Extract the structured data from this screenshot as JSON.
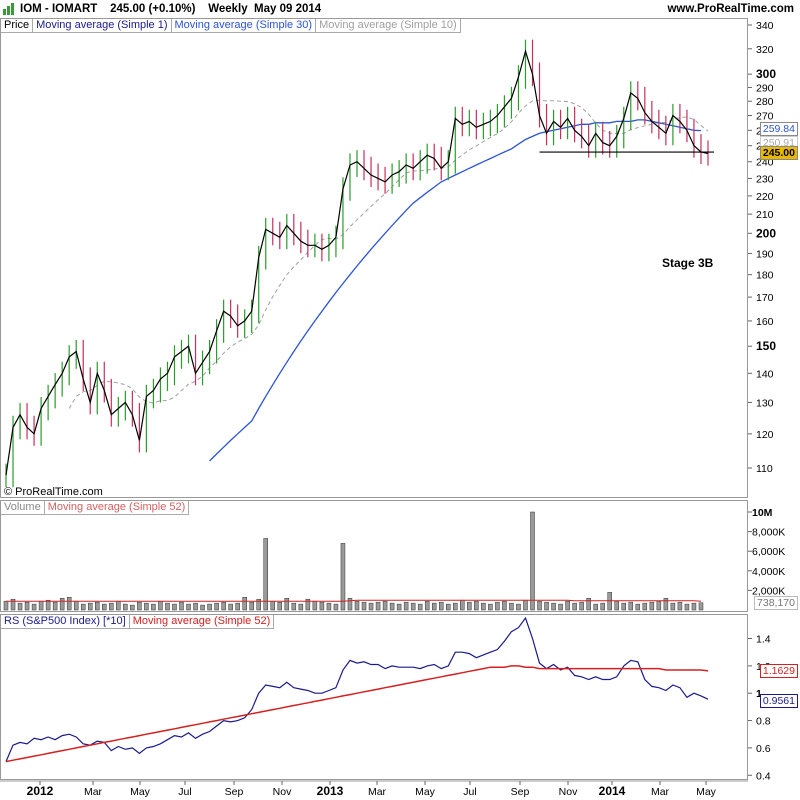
{
  "header": {
    "title": "IOM - IOMART    245.00 (+0.10%)    Weekly  May 09 2014",
    "site": "www.ProRealTime.com"
  },
  "price_panel": {
    "legend": [
      "Price",
      "Moving average (Simple 1)",
      "Moving average (Simple 30)",
      "Moving average (Simple 10)"
    ],
    "copyright": "© ProRealTime.com",
    "annotation": "Stage 3B",
    "tags": {
      "ma30": "259.84",
      "ma10": "250.91",
      "price": "245.00"
    },
    "yticks": [
      "340",
      "320",
      "300",
      "290",
      "280",
      "270",
      "260",
      "250",
      "240",
      "230",
      "220",
      "210",
      "200",
      "190",
      "180",
      "170",
      "160",
      "150",
      "140",
      "130",
      "120",
      "110"
    ]
  },
  "volume_panel": {
    "legend": [
      "Volume",
      "Moving average (Simple 52)"
    ],
    "yticks": [
      "10M",
      "8,000K",
      "6,000K",
      "4,000K",
      "2,000K"
    ],
    "tag": "738,170"
  },
  "rs_panel": {
    "legend": [
      "RS (S&P500 Index) [*10]",
      "Moving average (Simple 52)"
    ],
    "yticks": [
      "1.4",
      "1.2",
      "1",
      "0.8",
      "0.6",
      "0.4"
    ],
    "tags": {
      "ma": "1.1629",
      "rs": "0.9561"
    }
  },
  "xaxis": {
    "labels": [
      "2012",
      "Mar",
      "May",
      "Jul",
      "Sep",
      "Nov",
      "2013",
      "Mar",
      "May",
      "Jul",
      "Sep",
      "Nov",
      "2014",
      "Mar",
      "May"
    ]
  },
  "chart_data": {
    "type": "line",
    "title": "IOM - IOMART",
    "price_close": [
      108,
      122,
      126,
      122,
      120,
      128,
      132,
      136,
      140,
      146,
      148,
      138,
      130,
      140,
      134,
      126,
      128,
      130,
      126,
      118,
      132,
      134,
      138,
      140,
      146,
      148,
      150,
      140,
      144,
      148,
      156,
      164,
      162,
      158,
      160,
      164,
      188,
      202,
      200,
      198,
      204,
      200,
      196,
      194,
      194,
      192,
      194,
      198,
      224,
      238,
      240,
      236,
      232,
      230,
      228,
      232,
      234,
      238,
      236,
      240,
      244,
      242,
      236,
      240,
      268,
      264,
      266,
      262,
      264,
      266,
      270,
      276,
      282,
      298,
      318,
      300,
      270,
      258,
      266,
      262,
      268,
      260,
      256,
      250,
      258,
      252,
      250,
      256,
      268,
      286,
      282,
      272,
      266,
      262,
      258,
      270,
      266,
      260,
      250,
      246,
      245
    ],
    "ma30": [
      null,
      null,
      null,
      null,
      null,
      null,
      null,
      null,
      null,
      null,
      null,
      null,
      null,
      null,
      null,
      null,
      null,
      null,
      null,
      null,
      null,
      null,
      null,
      null,
      null,
      null,
      null,
      null,
      null,
      112,
      114,
      116,
      118,
      120,
      122,
      124,
      128,
      132,
      136,
      140,
      144,
      148,
      152,
      156,
      160,
      164,
      168,
      172,
      176,
      180,
      184,
      188,
      192,
      196,
      200,
      204,
      208,
      212,
      216,
      219,
      222,
      225,
      228,
      230,
      232,
      234,
      236,
      238,
      240,
      242,
      244,
      246,
      248,
      251,
      254,
      256,
      258,
      259,
      260,
      261,
      262,
      263,
      264,
      264,
      265,
      265,
      265,
      266,
      266,
      266,
      267,
      267,
      266,
      265,
      264,
      263,
      262,
      261,
      260,
      259.84
    ],
    "volume_k": [
      900,
      1100,
      700,
      800,
      600,
      900,
      1000,
      800,
      1200,
      1300,
      900,
      600,
      700,
      800,
      600,
      700,
      900,
      600,
      500,
      800,
      700,
      600,
      900,
      700,
      600,
      800,
      600,
      700,
      500,
      600,
      700,
      800,
      600,
      700,
      1300,
      800,
      1100,
      7300,
      900,
      800,
      1200,
      700,
      600,
      1100,
      900,
      800,
      700,
      600,
      6800,
      1200,
      900,
      800,
      700,
      800,
      900,
      700,
      600,
      800,
      700,
      600,
      900,
      700,
      800,
      600,
      700,
      1000,
      800,
      900,
      700,
      600,
      800,
      900,
      700,
      600,
      1000,
      10000,
      900,
      800,
      700,
      600,
      900,
      700,
      800,
      1200,
      600,
      700,
      1800,
      900,
      700,
      800,
      600,
      700,
      800,
      900,
      1200,
      700,
      800,
      600,
      700,
      738
    ],
    "volume_ma": [
      900,
      900,
      900,
      900,
      900,
      900,
      900,
      900,
      900,
      900,
      900,
      900,
      900,
      900,
      900,
      900,
      900,
      900,
      900,
      900,
      900,
      900,
      900,
      900,
      900,
      900,
      900,
      900,
      900,
      900,
      900,
      900,
      900,
      900,
      900,
      900,
      900,
      900,
      900,
      900,
      900,
      900,
      900,
      900,
      900,
      900,
      900,
      900,
      900,
      950,
      1000,
      1000,
      1000,
      1000,
      1000,
      1000,
      1000,
      1000,
      1000,
      1000,
      1000,
      1000,
      1000,
      1000,
      1000,
      1000,
      1000,
      1000,
      1000,
      1000,
      1000,
      1000,
      1000,
      1000,
      1000,
      1000,
      1000,
      1000,
      1000,
      1000,
      1000,
      950,
      950,
      950,
      950,
      950,
      950,
      950,
      950,
      950,
      950,
      950,
      950,
      950,
      950,
      950,
      950,
      950,
      950,
      900
    ],
    "rs": [
      0.5,
      0.62,
      0.64,
      0.63,
      0.67,
      0.66,
      0.68,
      0.66,
      0.69,
      0.7,
      0.68,
      0.63,
      0.62,
      0.65,
      0.64,
      0.58,
      0.61,
      0.59,
      0.6,
      0.56,
      0.6,
      0.61,
      0.63,
      0.66,
      0.69,
      0.68,
      0.71,
      0.67,
      0.7,
      0.72,
      0.76,
      0.8,
      0.79,
      0.8,
      0.82,
      0.88,
      1.0,
      1.06,
      1.05,
      1.04,
      1.08,
      1.04,
      1.03,
      1.02,
      1.0,
      1.0,
      1.02,
      1.04,
      1.17,
      1.24,
      1.22,
      1.23,
      1.21,
      1.21,
      1.18,
      1.2,
      1.19,
      1.19,
      1.19,
      1.18,
      1.2,
      1.21,
      1.18,
      1.2,
      1.3,
      1.3,
      1.29,
      1.26,
      1.28,
      1.3,
      1.32,
      1.38,
      1.45,
      1.48,
      1.55,
      1.4,
      1.22,
      1.18,
      1.21,
      1.17,
      1.19,
      1.13,
      1.12,
      1.1,
      1.12,
      1.1,
      1.1,
      1.12,
      1.2,
      1.24,
      1.23,
      1.1,
      1.05,
      1.04,
      1.02,
      1.06,
      1.04,
      0.97,
      1.0,
      0.98,
      0.9561
    ],
    "rs_ma": [
      0.5,
      0.51,
      0.52,
      0.53,
      0.54,
      0.55,
      0.56,
      0.57,
      0.58,
      0.59,
      0.6,
      0.61,
      0.62,
      0.63,
      0.64,
      0.65,
      0.66,
      0.67,
      0.68,
      0.69,
      0.7,
      0.71,
      0.72,
      0.73,
      0.74,
      0.75,
      0.76,
      0.77,
      0.78,
      0.79,
      0.8,
      0.81,
      0.82,
      0.83,
      0.84,
      0.85,
      0.86,
      0.87,
      0.88,
      0.89,
      0.9,
      0.91,
      0.92,
      0.93,
      0.94,
      0.95,
      0.96,
      0.97,
      0.98,
      0.99,
      1.0,
      1.01,
      1.02,
      1.03,
      1.04,
      1.05,
      1.06,
      1.07,
      1.08,
      1.09,
      1.1,
      1.11,
      1.12,
      1.13,
      1.14,
      1.15,
      1.16,
      1.17,
      1.18,
      1.19,
      1.19,
      1.19,
      1.2,
      1.2,
      1.19,
      1.19,
      1.18,
      1.18,
      1.18,
      1.18,
      1.18,
      1.18,
      1.18,
      1.18,
      1.18,
      1.18,
      1.18,
      1.18,
      1.18,
      1.18,
      1.18,
      1.18,
      1.18,
      1.18,
      1.17,
      1.17,
      1.17,
      1.17,
      1.17,
      1.17,
      1.1629
    ],
    "colors": {
      "up": "#2a9d2a",
      "down": "#c8305a",
      "close": "#000000",
      "ma30": "#2b54d6",
      "ma10": "#a0a0a0",
      "rs": "#1a1a8c",
      "rs_ma": "#d42020",
      "volume": "#9a9a9a",
      "tag_price": "#e8b800"
    }
  }
}
